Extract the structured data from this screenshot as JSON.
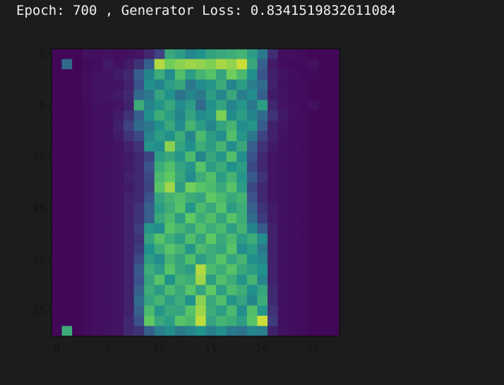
{
  "output": {
    "epoch_text": "Epoch: 700 , Generator Loss: 0.8341519832611084"
  },
  "colors": {
    "background": "#1b1c1e",
    "text": "#f0f0f0",
    "axis": "#111111",
    "colormap": "viridis"
  },
  "chart_data": {
    "type": "heatmap",
    "colormap": "viridis",
    "shape": [
      28,
      28
    ],
    "x_ticks": [
      0,
      5,
      10,
      15,
      20,
      25
    ],
    "y_ticks": [
      0,
      5,
      10,
      15,
      20,
      25
    ],
    "xlim": [
      -0.5,
      27.5
    ],
    "ylim": [
      27.5,
      -0.5
    ],
    "values": [
      [
        0.02,
        0.02,
        0.02,
        0.05,
        0.04,
        0.05,
        0.04,
        0.05,
        0.06,
        0.12,
        0.2,
        0.6,
        0.55,
        0.45,
        0.5,
        0.58,
        0.6,
        0.62,
        0.65,
        0.55,
        0.4,
        0.14,
        0.04,
        0.04,
        0.03,
        0.02,
        0.02,
        0.02
      ],
      [
        0.02,
        0.35,
        0.02,
        0.03,
        0.04,
        0.08,
        0.05,
        0.08,
        0.15,
        0.3,
        0.88,
        0.78,
        0.82,
        0.85,
        0.83,
        0.8,
        0.87,
        0.83,
        0.92,
        0.6,
        0.3,
        0.08,
        0.04,
        0.03,
        0.03,
        0.05,
        0.02,
        0.02
      ],
      [
        0.02,
        0.02,
        0.02,
        0.04,
        0.05,
        0.06,
        0.08,
        0.12,
        0.3,
        0.45,
        0.62,
        0.48,
        0.7,
        0.55,
        0.65,
        0.72,
        0.58,
        0.78,
        0.68,
        0.5,
        0.25,
        0.1,
        0.06,
        0.04,
        0.03,
        0.03,
        0.02,
        0.02
      ],
      [
        0.02,
        0.02,
        0.02,
        0.04,
        0.06,
        0.06,
        0.06,
        0.1,
        0.25,
        0.5,
        0.45,
        0.55,
        0.6,
        0.4,
        0.48,
        0.52,
        0.62,
        0.45,
        0.55,
        0.42,
        0.35,
        0.1,
        0.05,
        0.04,
        0.03,
        0.02,
        0.02,
        0.02
      ],
      [
        0.02,
        0.02,
        0.02,
        0.04,
        0.05,
        0.06,
        0.08,
        0.12,
        0.35,
        0.4,
        0.58,
        0.5,
        0.38,
        0.45,
        0.4,
        0.55,
        0.45,
        0.6,
        0.42,
        0.48,
        0.3,
        0.08,
        0.06,
        0.04,
        0.03,
        0.02,
        0.02,
        0.02
      ],
      [
        0.02,
        0.02,
        0.02,
        0.03,
        0.05,
        0.05,
        0.06,
        0.1,
        0.62,
        0.45,
        0.52,
        0.6,
        0.48,
        0.55,
        0.35,
        0.5,
        0.58,
        0.45,
        0.52,
        0.4,
        0.55,
        0.12,
        0.06,
        0.04,
        0.03,
        0.05,
        0.02,
        0.02
      ],
      [
        0.02,
        0.02,
        0.02,
        0.03,
        0.04,
        0.05,
        0.08,
        0.15,
        0.3,
        0.5,
        0.62,
        0.55,
        0.45,
        0.58,
        0.48,
        0.52,
        0.8,
        0.48,
        0.55,
        0.45,
        0.35,
        0.15,
        0.08,
        0.04,
        0.03,
        0.02,
        0.02,
        0.02
      ],
      [
        0.02,
        0.02,
        0.02,
        0.03,
        0.04,
        0.05,
        0.1,
        0.2,
        0.35,
        0.4,
        0.5,
        0.6,
        0.48,
        0.65,
        0.55,
        0.45,
        0.58,
        0.65,
        0.48,
        0.52,
        0.28,
        0.1,
        0.06,
        0.04,
        0.03,
        0.02,
        0.02,
        0.02
      ],
      [
        0.02,
        0.02,
        0.02,
        0.03,
        0.04,
        0.05,
        0.08,
        0.15,
        0.22,
        0.45,
        0.55,
        0.5,
        0.62,
        0.45,
        0.68,
        0.55,
        0.48,
        0.7,
        0.52,
        0.4,
        0.2,
        0.1,
        0.05,
        0.04,
        0.03,
        0.02,
        0.02,
        0.02
      ],
      [
        0.02,
        0.02,
        0.02,
        0.03,
        0.04,
        0.05,
        0.06,
        0.1,
        0.15,
        0.52,
        0.48,
        0.82,
        0.58,
        0.5,
        0.62,
        0.55,
        0.65,
        0.48,
        0.6,
        0.3,
        0.15,
        0.08,
        0.05,
        0.04,
        0.03,
        0.02,
        0.02,
        0.02
      ],
      [
        0.02,
        0.02,
        0.02,
        0.03,
        0.04,
        0.05,
        0.06,
        0.08,
        0.12,
        0.2,
        0.55,
        0.6,
        0.52,
        0.68,
        0.45,
        0.6,
        0.52,
        0.7,
        0.48,
        0.25,
        0.12,
        0.06,
        0.05,
        0.04,
        0.03,
        0.02,
        0.02,
        0.02
      ],
      [
        0.02,
        0.02,
        0.02,
        0.03,
        0.04,
        0.05,
        0.06,
        0.08,
        0.12,
        0.25,
        0.62,
        0.7,
        0.58,
        0.52,
        0.72,
        0.55,
        0.62,
        0.5,
        0.55,
        0.22,
        0.12,
        0.06,
        0.05,
        0.04,
        0.03,
        0.02,
        0.02,
        0.02
      ],
      [
        0.02,
        0.02,
        0.02,
        0.03,
        0.04,
        0.05,
        0.06,
        0.1,
        0.12,
        0.22,
        0.68,
        0.75,
        0.6,
        0.48,
        0.62,
        0.7,
        0.55,
        0.65,
        0.52,
        0.28,
        0.15,
        0.06,
        0.05,
        0.04,
        0.03,
        0.02,
        0.02,
        0.02
      ],
      [
        0.02,
        0.02,
        0.02,
        0.03,
        0.04,
        0.05,
        0.06,
        0.08,
        0.12,
        0.2,
        0.72,
        0.85,
        0.55,
        0.78,
        0.72,
        0.68,
        0.6,
        0.72,
        0.55,
        0.22,
        0.12,
        0.06,
        0.05,
        0.04,
        0.03,
        0.02,
        0.02,
        0.02
      ],
      [
        0.02,
        0.02,
        0.02,
        0.03,
        0.04,
        0.05,
        0.06,
        0.1,
        0.12,
        0.25,
        0.58,
        0.65,
        0.7,
        0.62,
        0.58,
        0.75,
        0.68,
        0.6,
        0.65,
        0.25,
        0.12,
        0.06,
        0.05,
        0.04,
        0.03,
        0.02,
        0.02,
        0.02
      ],
      [
        0.02,
        0.02,
        0.02,
        0.03,
        0.04,
        0.05,
        0.06,
        0.1,
        0.15,
        0.3,
        0.55,
        0.62,
        0.72,
        0.52,
        0.68,
        0.6,
        0.72,
        0.55,
        0.62,
        0.3,
        0.15,
        0.08,
        0.05,
        0.04,
        0.03,
        0.02,
        0.02,
        0.02
      ],
      [
        0.02,
        0.02,
        0.02,
        0.03,
        0.04,
        0.05,
        0.06,
        0.1,
        0.15,
        0.3,
        0.6,
        0.68,
        0.55,
        0.75,
        0.62,
        0.7,
        0.58,
        0.72,
        0.62,
        0.35,
        0.18,
        0.08,
        0.05,
        0.04,
        0.03,
        0.02,
        0.02,
        0.02
      ],
      [
        0.02,
        0.02,
        0.02,
        0.03,
        0.04,
        0.05,
        0.06,
        0.1,
        0.18,
        0.52,
        0.48,
        0.72,
        0.65,
        0.58,
        0.7,
        0.62,
        0.68,
        0.55,
        0.65,
        0.45,
        0.28,
        0.1,
        0.05,
        0.04,
        0.03,
        0.02,
        0.02,
        0.02
      ],
      [
        0.02,
        0.02,
        0.02,
        0.03,
        0.04,
        0.05,
        0.06,
        0.1,
        0.15,
        0.58,
        0.72,
        0.62,
        0.55,
        0.7,
        0.58,
        0.75,
        0.6,
        0.68,
        0.55,
        0.62,
        0.48,
        0.1,
        0.05,
        0.04,
        0.03,
        0.02,
        0.02,
        0.02
      ],
      [
        0.02,
        0.02,
        0.02,
        0.03,
        0.04,
        0.05,
        0.06,
        0.1,
        0.18,
        0.5,
        0.62,
        0.72,
        0.65,
        0.52,
        0.68,
        0.62,
        0.58,
        0.72,
        0.48,
        0.55,
        0.4,
        0.1,
        0.05,
        0.04,
        0.03,
        0.02,
        0.02,
        0.02
      ],
      [
        0.02,
        0.02,
        0.02,
        0.03,
        0.04,
        0.05,
        0.06,
        0.1,
        0.22,
        0.55,
        0.48,
        0.65,
        0.58,
        0.7,
        0.55,
        0.62,
        0.72,
        0.58,
        0.65,
        0.5,
        0.45,
        0.1,
        0.05,
        0.04,
        0.03,
        0.02,
        0.02,
        0.02
      ],
      [
        0.02,
        0.02,
        0.02,
        0.03,
        0.04,
        0.05,
        0.06,
        0.1,
        0.28,
        0.62,
        0.55,
        0.72,
        0.6,
        0.55,
        0.88,
        0.68,
        0.62,
        0.72,
        0.6,
        0.55,
        0.5,
        0.1,
        0.05,
        0.04,
        0.03,
        0.02,
        0.02,
        0.02
      ],
      [
        0.02,
        0.02,
        0.02,
        0.03,
        0.04,
        0.05,
        0.06,
        0.1,
        0.25,
        0.58,
        0.72,
        0.5,
        0.65,
        0.62,
        0.85,
        0.55,
        0.7,
        0.62,
        0.52,
        0.65,
        0.45,
        0.1,
        0.05,
        0.04,
        0.03,
        0.02,
        0.02,
        0.02
      ],
      [
        0.02,
        0.02,
        0.02,
        0.03,
        0.04,
        0.05,
        0.06,
        0.1,
        0.3,
        0.62,
        0.55,
        0.68,
        0.6,
        0.72,
        0.58,
        0.75,
        0.55,
        0.68,
        0.62,
        0.5,
        0.58,
        0.12,
        0.05,
        0.04,
        0.03,
        0.02,
        0.02,
        0.02
      ],
      [
        0.02,
        0.02,
        0.02,
        0.03,
        0.04,
        0.05,
        0.06,
        0.1,
        0.35,
        0.58,
        0.65,
        0.55,
        0.62,
        0.5,
        0.82,
        0.6,
        0.7,
        0.52,
        0.58,
        0.45,
        0.62,
        0.12,
        0.05,
        0.04,
        0.03,
        0.02,
        0.02,
        0.02
      ],
      [
        0.02,
        0.02,
        0.02,
        0.03,
        0.04,
        0.05,
        0.06,
        0.1,
        0.3,
        0.68,
        0.52,
        0.6,
        0.58,
        0.72,
        0.85,
        0.62,
        0.55,
        0.68,
        0.48,
        0.7,
        0.52,
        0.15,
        0.05,
        0.04,
        0.03,
        0.02,
        0.02,
        0.02
      ],
      [
        0.02,
        0.02,
        0.02,
        0.03,
        0.04,
        0.05,
        0.06,
        0.12,
        0.25,
        0.75,
        0.6,
        0.55,
        0.72,
        0.68,
        0.9,
        0.58,
        0.65,
        0.62,
        0.55,
        0.72,
        0.92,
        0.18,
        0.05,
        0.04,
        0.03,
        0.02,
        0.02,
        0.02
      ],
      [
        0.02,
        0.62,
        0.02,
        0.03,
        0.04,
        0.05,
        0.06,
        0.12,
        0.15,
        0.3,
        0.42,
        0.48,
        0.4,
        0.45,
        0.5,
        0.42,
        0.48,
        0.4,
        0.38,
        0.45,
        0.42,
        0.1,
        0.05,
        0.04,
        0.03,
        0.02,
        0.02,
        0.02
      ]
    ]
  }
}
